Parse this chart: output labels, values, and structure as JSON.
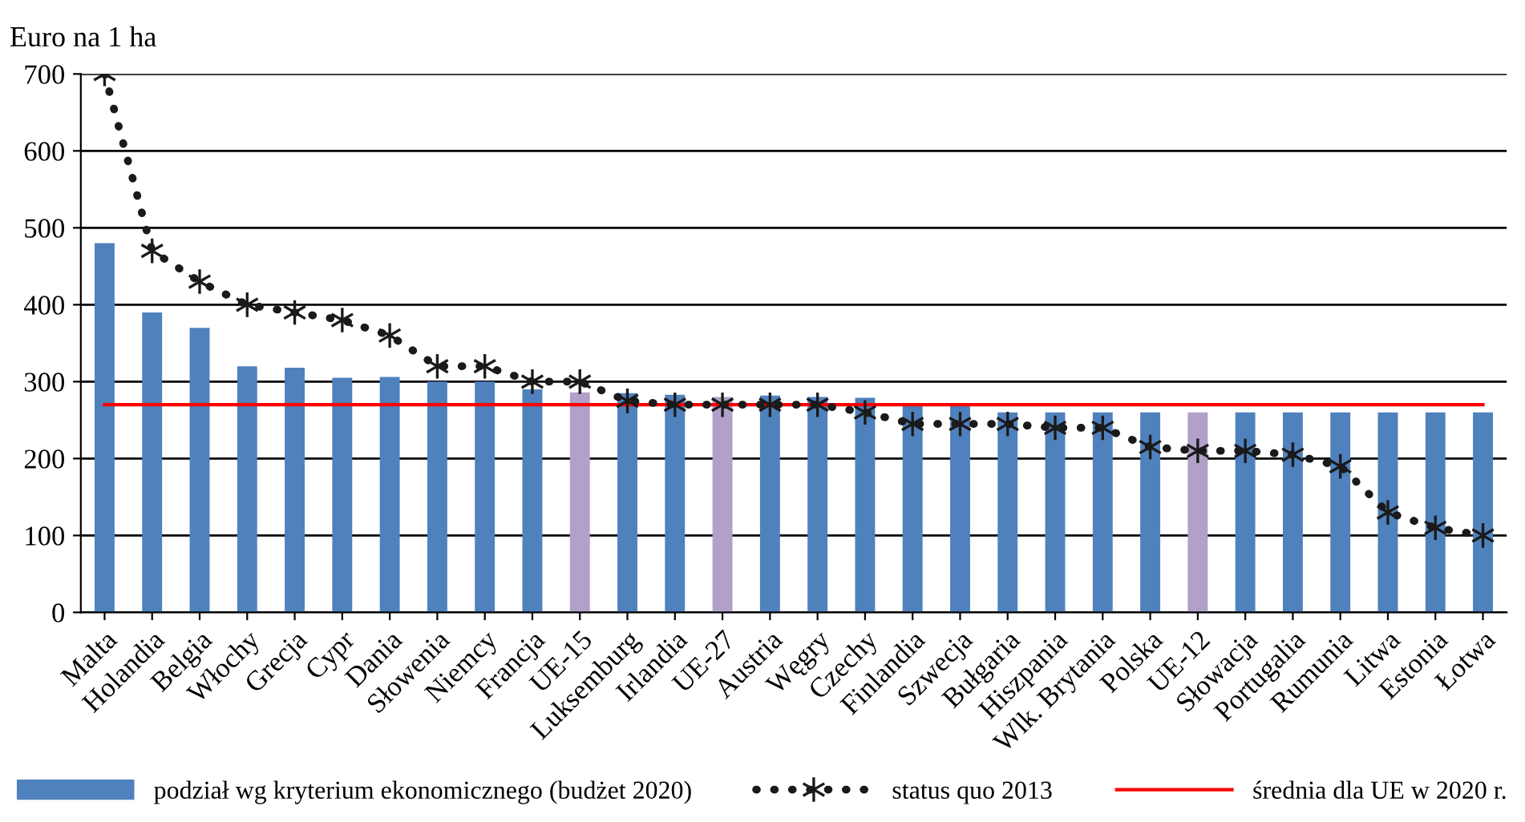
{
  "chart_data": {
    "type": "bar",
    "ylabel": "Euro na 1 ha",
    "categories": [
      "Malta",
      "Holandia",
      "Belgia",
      "Włochy",
      "Grecja",
      "Cypr",
      "Dania",
      "Słowenia",
      "Niemcy",
      "Francja",
      "UE-15",
      "Luksemburg",
      "Irlandia",
      "UE-27",
      "Austria",
      "Węgry",
      "Czechy",
      "Finlandia",
      "Szwecja",
      "Bułgaria",
      "Hiszpania",
      "Wlk. Brytania",
      "Polska",
      "UE-12",
      "Słowacja",
      "Portugalia",
      "Rumunia",
      "Litwa",
      "Estonia",
      "Łotwa"
    ],
    "series": [
      {
        "name": "podział wg kryterium ekonomicznego (budżet 2020)",
        "color": "#4f81bd",
        "colors": [
          "#4f81bd",
          "#4f81bd",
          "#4f81bd",
          "#4f81bd",
          "#4f81bd",
          "#4f81bd",
          "#4f81bd",
          "#4f81bd",
          "#4f81bd",
          "#4f81bd",
          "#b1a0c7",
          "#4f81bd",
          "#4f81bd",
          "#b1a0c7",
          "#4f81bd",
          "#4f81bd",
          "#4f81bd",
          "#4f81bd",
          "#4f81bd",
          "#4f81bd",
          "#4f81bd",
          "#4f81bd",
          "#4f81bd",
          "#b1a0c7",
          "#4f81bd",
          "#4f81bd",
          "#4f81bd",
          "#4f81bd",
          "#4f81bd",
          "#4f81bd"
        ],
        "values": [
          480,
          390,
          370,
          320,
          318,
          305,
          306,
          300,
          300,
          290,
          286,
          285,
          283,
          280,
          282,
          280,
          279,
          270,
          268,
          260,
          260,
          260,
          260,
          260,
          260,
          260,
          260,
          260,
          260,
          260
        ]
      },
      {
        "name": "status quo 2013",
        "type": "line",
        "color": "#1a1a1a",
        "marker": "cross",
        "line_style": "dotted",
        "values": [
          700,
          470,
          430,
          400,
          390,
          380,
          360,
          320,
          320,
          300,
          300,
          275,
          270,
          270,
          270,
          270,
          260,
          245,
          245,
          245,
          240,
          240,
          215,
          210,
          210,
          205,
          190,
          130,
          110,
          100
        ]
      }
    ],
    "ref_lines": [
      {
        "axis": "y",
        "value": 270,
        "label": "średnia dla UE w 2020 r.",
        "color": "#ff0000",
        "line_style": "solid"
      }
    ],
    "ylim": [
      0,
      700
    ],
    "yticks": [
      0,
      100,
      200,
      300,
      400,
      500,
      600,
      700
    ],
    "grid": "y",
    "legend": "bottom"
  }
}
